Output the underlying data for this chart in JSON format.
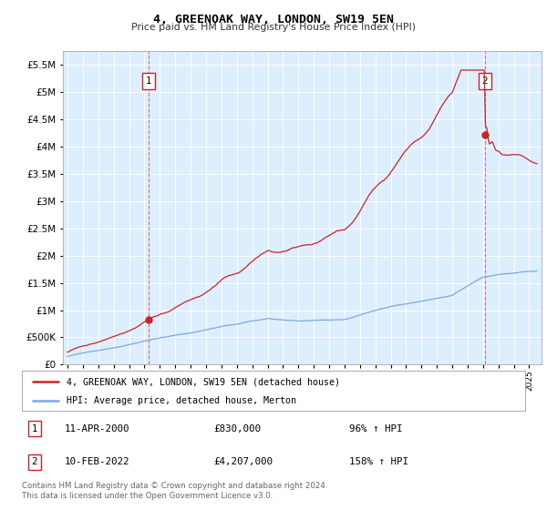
{
  "title": "4, GREENOAK WAY, LONDON, SW19 5EN",
  "subtitle": "Price paid vs. HM Land Registry's House Price Index (HPI)",
  "legend_line1": "4, GREENOAK WAY, LONDON, SW19 5EN (detached house)",
  "legend_line2": "HPI: Average price, detached house, Merton",
  "annotation1_label": "1",
  "annotation1_date": "11-APR-2000",
  "annotation1_price": "£830,000",
  "annotation1_hpi": "96% ↑ HPI",
  "annotation2_label": "2",
  "annotation2_date": "10-FEB-2022",
  "annotation2_price": "£4,207,000",
  "annotation2_hpi": "158% ↑ HPI",
  "footer": "Contains HM Land Registry data © Crown copyright and database right 2024.\nThis data is licensed under the Open Government Licence v3.0.",
  "hpi_color": "#7aaadd",
  "price_color": "#cc2222",
  "bg_color": "#ddeeff",
  "plot_bg": "#ffffff",
  "ylim": [
    0,
    5750000
  ],
  "yticks": [
    0,
    500000,
    1000000,
    1500000,
    2000000,
    2500000,
    3000000,
    3500000,
    4000000,
    4500000,
    5000000,
    5500000
  ],
  "sale1_x": 2000.27,
  "sale1_y": 830000,
  "sale2_x": 2022.11,
  "sale2_y": 4207000,
  "xmin": 1994.7,
  "xmax": 2025.8
}
